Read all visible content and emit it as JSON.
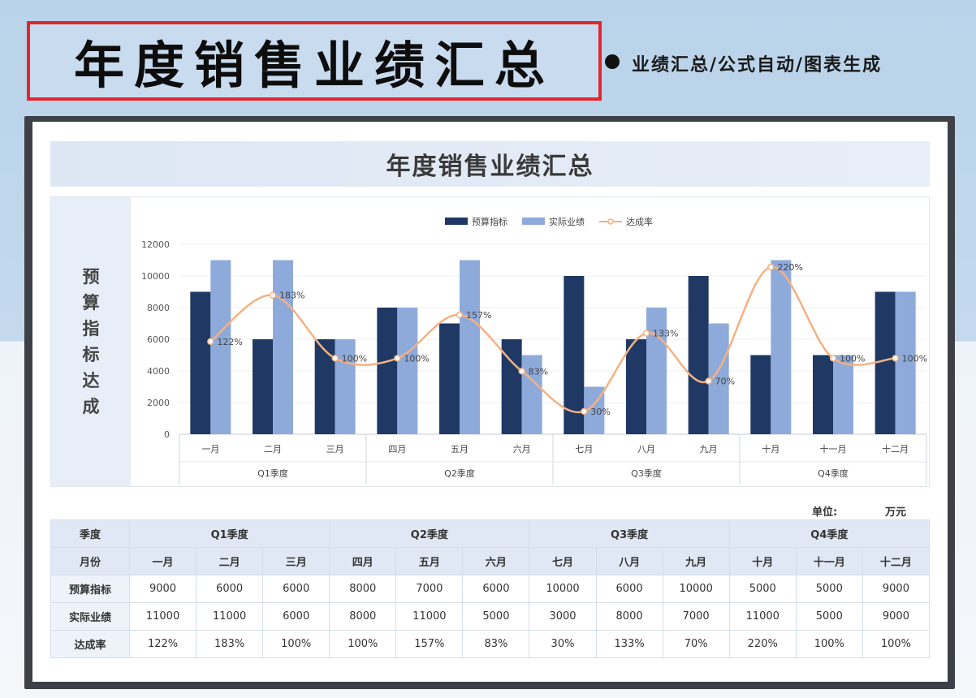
{
  "banner": {
    "title": "年度销售业绩汇总",
    "subtitle": "业绩汇总/公式自动/图表生成"
  },
  "card": {
    "title": "年度销售业绩汇总",
    "side_label": [
      "预",
      "算",
      "指",
      "标",
      "达",
      "成"
    ],
    "unit_label": "单位:",
    "unit_value": "万元"
  },
  "colors": {
    "budget": "#1f3864",
    "actual": "#8eaadb",
    "rate": "#f4b183"
  },
  "chart_data": {
    "type": "bar",
    "categories": [
      "一月",
      "二月",
      "三月",
      "四月",
      "五月",
      "六月",
      "七月",
      "八月",
      "九月",
      "十月",
      "十一月",
      "十二月"
    ],
    "groups": [
      "Q1季度",
      "Q2季度",
      "Q3季度",
      "Q4季度"
    ],
    "series": [
      {
        "name": "预算指标",
        "type": "bar",
        "values": [
          9000,
          6000,
          6000,
          8000,
          7000,
          6000,
          10000,
          6000,
          10000,
          5000,
          5000,
          9000
        ]
      },
      {
        "name": "实际业绩",
        "type": "bar",
        "values": [
          11000,
          11000,
          6000,
          8000,
          11000,
          5000,
          3000,
          8000,
          7000,
          11000,
          5000,
          9000
        ]
      },
      {
        "name": "达成率",
        "type": "line",
        "values": [
          122,
          183,
          100,
          100,
          157,
          83,
          30,
          133,
          70,
          220,
          100,
          100
        ],
        "labels": [
          "122%",
          "183%",
          "100%",
          "100%",
          "157%",
          "83%",
          "30%",
          "133%",
          "70%",
          "220%",
          "100%",
          "100%"
        ]
      }
    ],
    "yticks": [
      "0",
      "2000",
      "4000",
      "6000",
      "8000",
      "10000",
      "12000"
    ],
    "ylim": [
      0,
      12000
    ],
    "legend": "top-center"
  },
  "table": {
    "quarter_header": "季度",
    "month_header": "月份",
    "quarters": [
      "Q1季度",
      "Q2季度",
      "Q3季度",
      "Q4季度"
    ],
    "months": [
      "一月",
      "二月",
      "三月",
      "四月",
      "五月",
      "六月",
      "七月",
      "八月",
      "九月",
      "十月",
      "十一月",
      "十二月"
    ],
    "rows": [
      {
        "label": "预算指标",
        "values": [
          "9000",
          "6000",
          "6000",
          "8000",
          "7000",
          "6000",
          "10000",
          "6000",
          "10000",
          "5000",
          "5000",
          "9000"
        ]
      },
      {
        "label": "实际业绩",
        "values": [
          "11000",
          "11000",
          "6000",
          "8000",
          "11000",
          "5000",
          "3000",
          "8000",
          "7000",
          "11000",
          "5000",
          "9000"
        ]
      },
      {
        "label": "达成率",
        "values": [
          "122%",
          "183%",
          "100%",
          "100%",
          "157%",
          "83%",
          "30%",
          "133%",
          "70%",
          "220%",
          "100%",
          "100%"
        ]
      }
    ]
  }
}
